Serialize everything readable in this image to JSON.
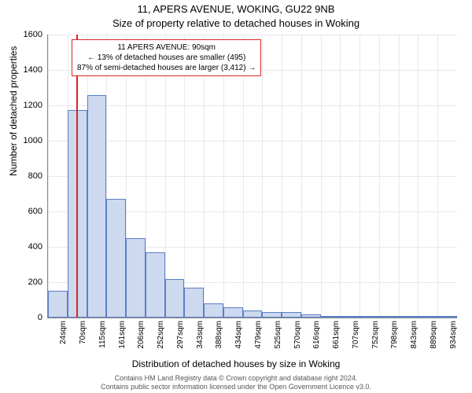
{
  "chart": {
    "type": "histogram",
    "title_main": "11, APERS AVENUE, WOKING, GU22 9NB",
    "title_sub": "Size of property relative to detached houses in Woking",
    "ylabel": "Number of detached properties",
    "xlabel": "Distribution of detached houses by size in Woking",
    "background_color": "#ffffff",
    "grid_color": "#e8e8ef",
    "bar_fill": "#cdd9ee",
    "bar_stroke": "#5a7ec7",
    "ref_color": "#d62728",
    "title_fontsize": 13,
    "label_fontsize": 12,
    "tick_fontsize": 11,
    "xtick_fontsize": 10,
    "ylim": [
      0,
      1600
    ],
    "ytick_step": 200,
    "xticks": [
      "24sqm",
      "70sqm",
      "115sqm",
      "161sqm",
      "206sqm",
      "252sqm",
      "297sqm",
      "343sqm",
      "388sqm",
      "434sqm",
      "479sqm",
      "525sqm",
      "570sqm",
      "616sqm",
      "661sqm",
      "707sqm",
      "752sqm",
      "798sqm",
      "843sqm",
      "889sqm",
      "934sqm"
    ],
    "bars": [
      150,
      1175,
      1260,
      670,
      450,
      370,
      220,
      170,
      80,
      60,
      40,
      30,
      30,
      20,
      0,
      10,
      0,
      10,
      0,
      0,
      0
    ],
    "reference_bin_index": 1,
    "annotation": {
      "line1": "11 APERS AVENUE: 90sqm",
      "line2": "← 13% of detached houses are smaller (495)",
      "line3": "87% of semi-detached houses are larger (3,412) →"
    },
    "footer_line1": "Contains HM Land Registry data © Crown copyright and database right 2024.",
    "footer_line2": "Contains public sector information licensed under the Open Government Licence v3.0."
  }
}
